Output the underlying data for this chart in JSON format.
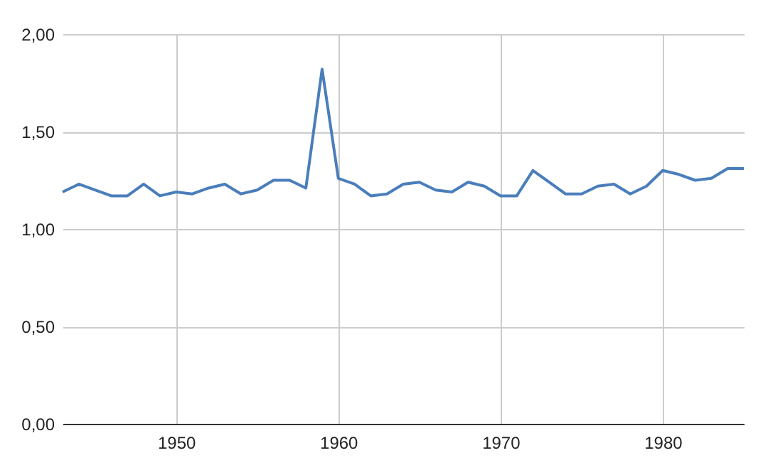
{
  "chart_data": {
    "type": "line",
    "x": [
      1943,
      1944,
      1945,
      1946,
      1947,
      1948,
      1949,
      1950,
      1951,
      1952,
      1953,
      1954,
      1955,
      1956,
      1957,
      1958,
      1959,
      1960,
      1961,
      1962,
      1963,
      1964,
      1965,
      1966,
      1967,
      1968,
      1969,
      1970,
      1971,
      1972,
      1973,
      1974,
      1975,
      1976,
      1977,
      1978,
      1979,
      1980,
      1981,
      1982,
      1983,
      1984,
      1985
    ],
    "series": [
      {
        "color": "#4a7ebb",
        "values": [
          1.19,
          1.23,
          1.2,
          1.17,
          1.17,
          1.23,
          1.17,
          1.19,
          1.18,
          1.21,
          1.23,
          1.18,
          1.2,
          1.25,
          1.25,
          1.21,
          1.82,
          1.26,
          1.23,
          1.17,
          1.18,
          1.23,
          1.24,
          1.2,
          1.19,
          1.24,
          1.22,
          1.17,
          1.17,
          1.3,
          1.24,
          1.18,
          1.18,
          1.22,
          1.23,
          1.18,
          1.22,
          1.3,
          1.28,
          1.25,
          1.26,
          1.31,
          1.31
        ]
      }
    ],
    "xlim": [
      1943,
      1985
    ],
    "xticks": [
      1950,
      1960,
      1970,
      1980
    ],
    "ylim": [
      0,
      2
    ],
    "yticks": [
      {
        "value": 0,
        "label": "0,00"
      },
      {
        "value": 0.5,
        "label": "0,50"
      },
      {
        "value": 1,
        "label": "1,00"
      },
      {
        "value": 1.5,
        "label": "1,50"
      },
      {
        "value": 2,
        "label": "2,00"
      }
    ],
    "grid": true
  }
}
